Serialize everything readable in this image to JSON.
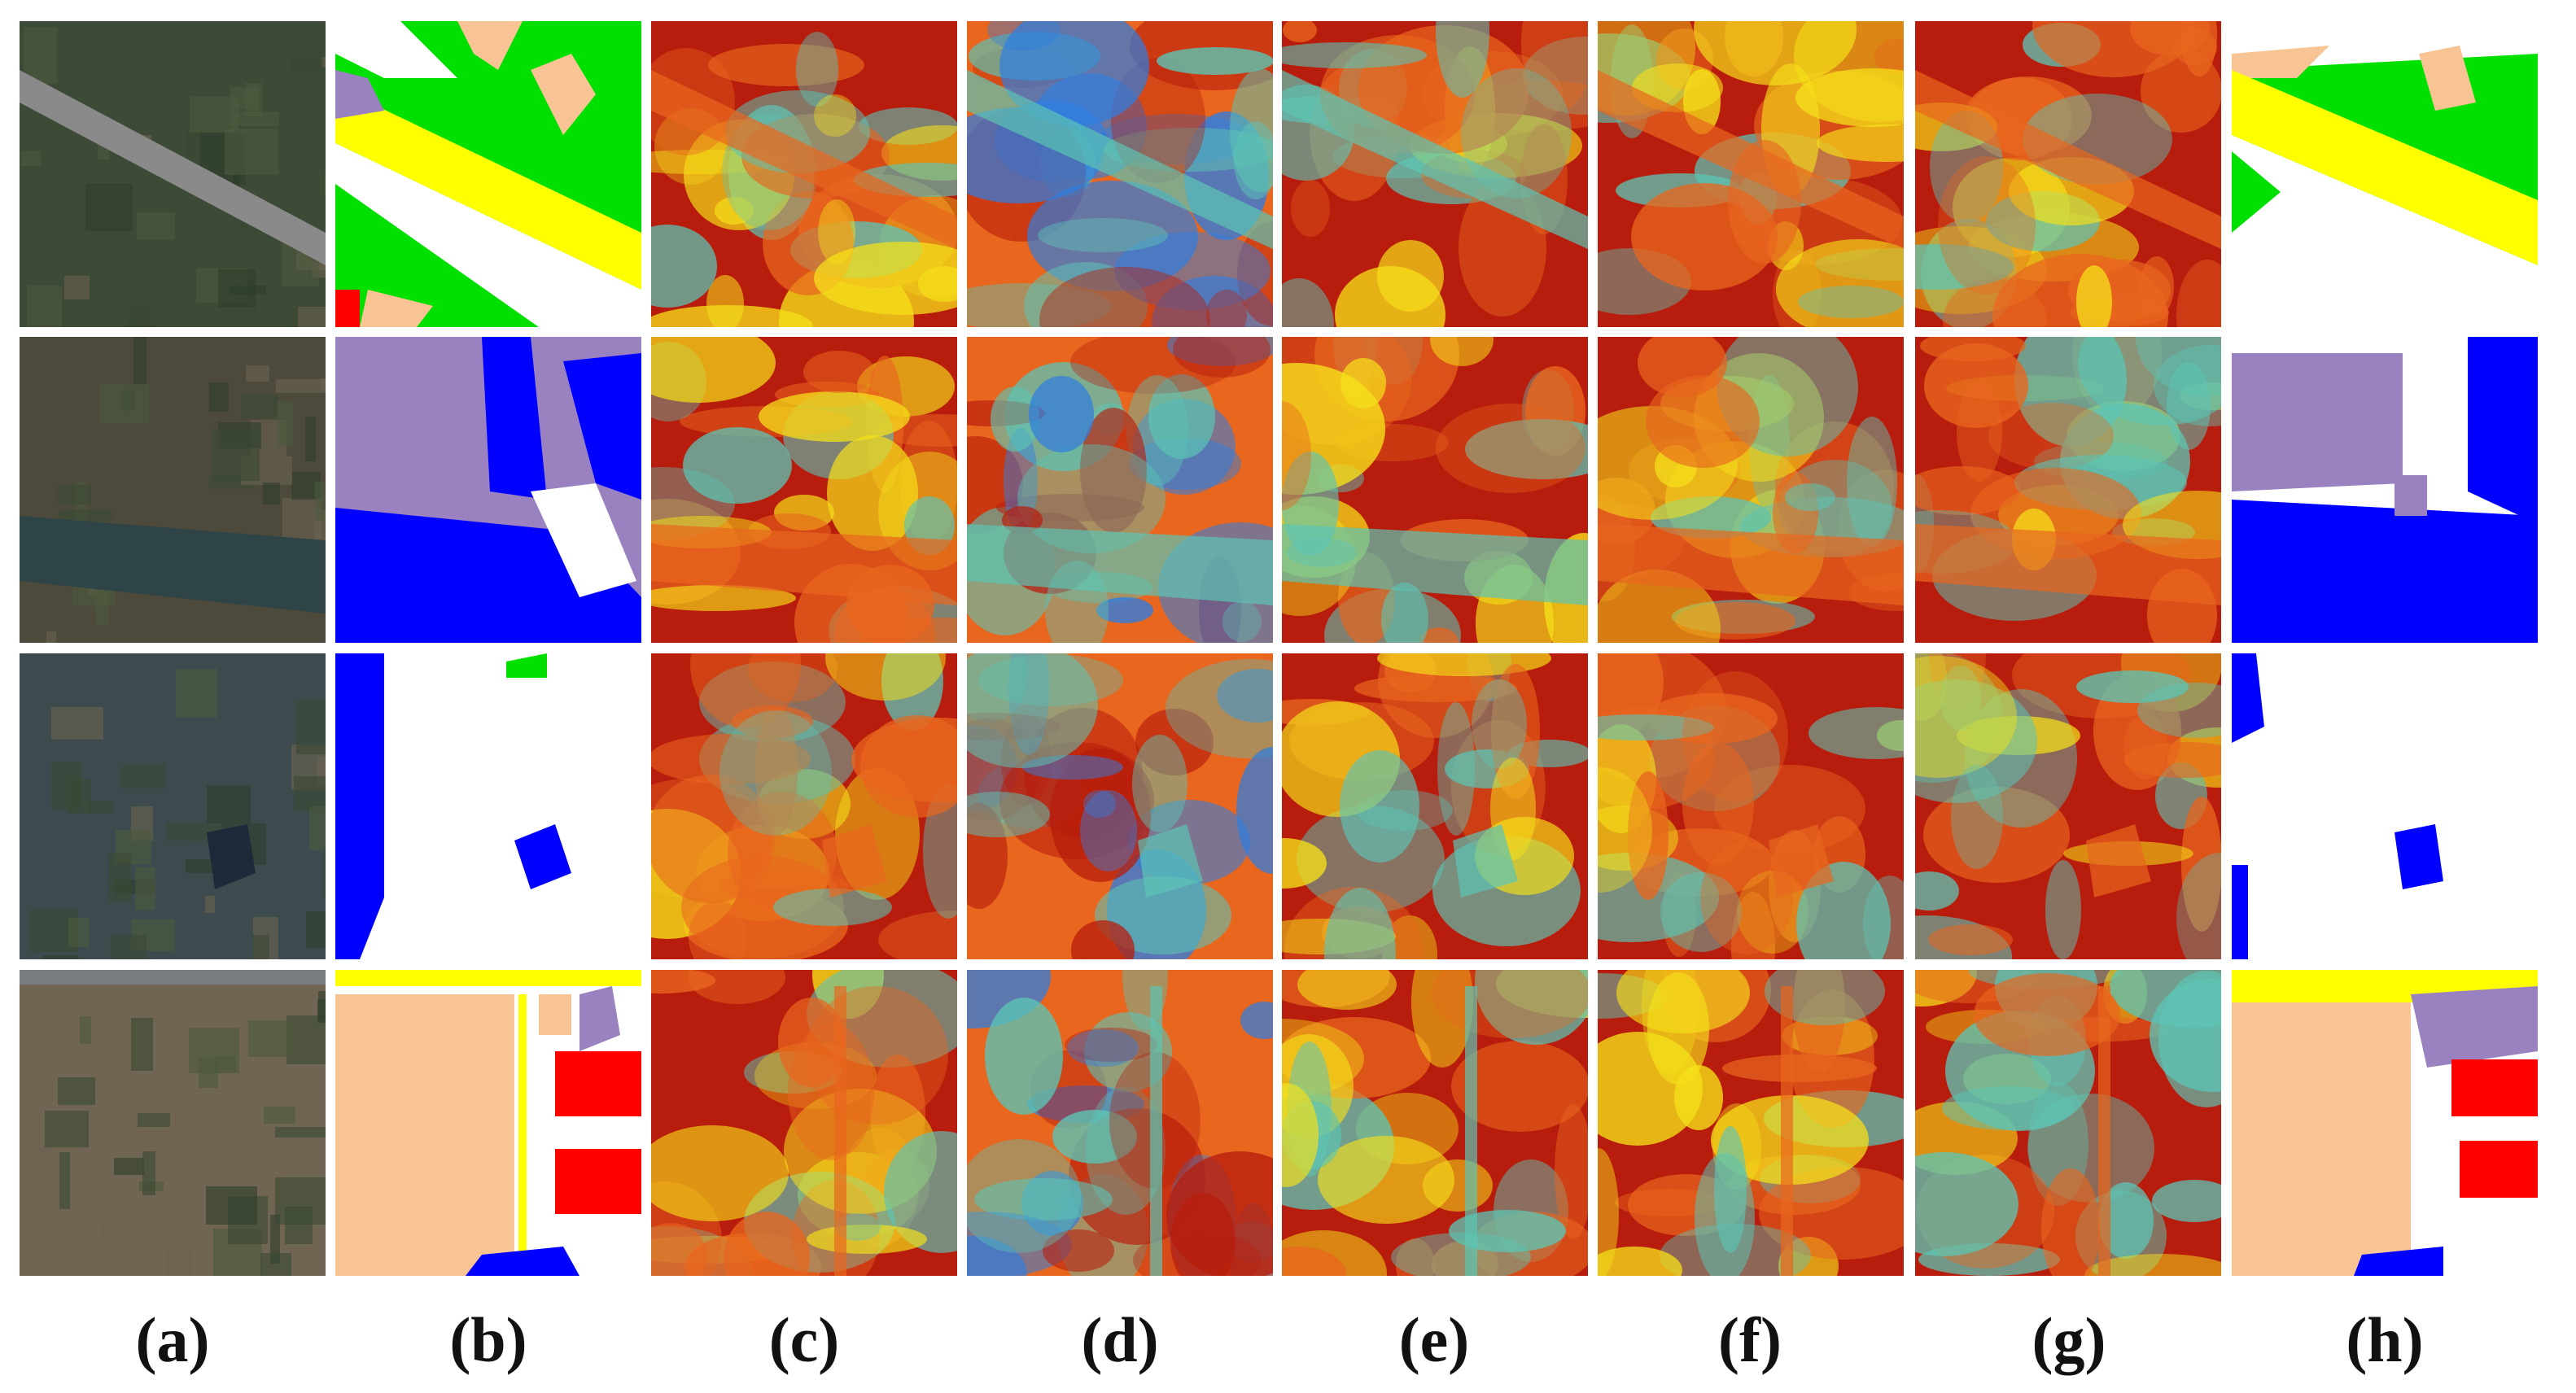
{
  "panel_labels": [
    "(a)",
    "(b)",
    "(c)",
    "(d)",
    "(e)",
    "(f)",
    "(g)",
    "(h)"
  ],
  "columns": [
    {
      "kind": "aerial-image"
    },
    {
      "kind": "segmentation-map"
    },
    {
      "kind": "heatmap"
    },
    {
      "kind": "heatmap"
    },
    {
      "kind": "heatmap"
    },
    {
      "kind": "heatmap"
    },
    {
      "kind": "heatmap"
    },
    {
      "kind": "segmentation-map"
    }
  ],
  "row_count": 4,
  "colors": {
    "background": "#ffffff",
    "class_green": "#00e000",
    "class_yellow": "#ffff00",
    "class_tan": "#f8c493",
    "class_lavender": "#9a82c0",
    "class_blue": "#0000ff",
    "class_red": "#ff0000",
    "class_white": "#ffffff",
    "heat_red": "#b81c0c",
    "heat_orange": "#e8661e",
    "heat_yellow": "#f5e01a",
    "heat_teal": "#5cc4b4",
    "heat_blue": "#2f7ee0"
  }
}
